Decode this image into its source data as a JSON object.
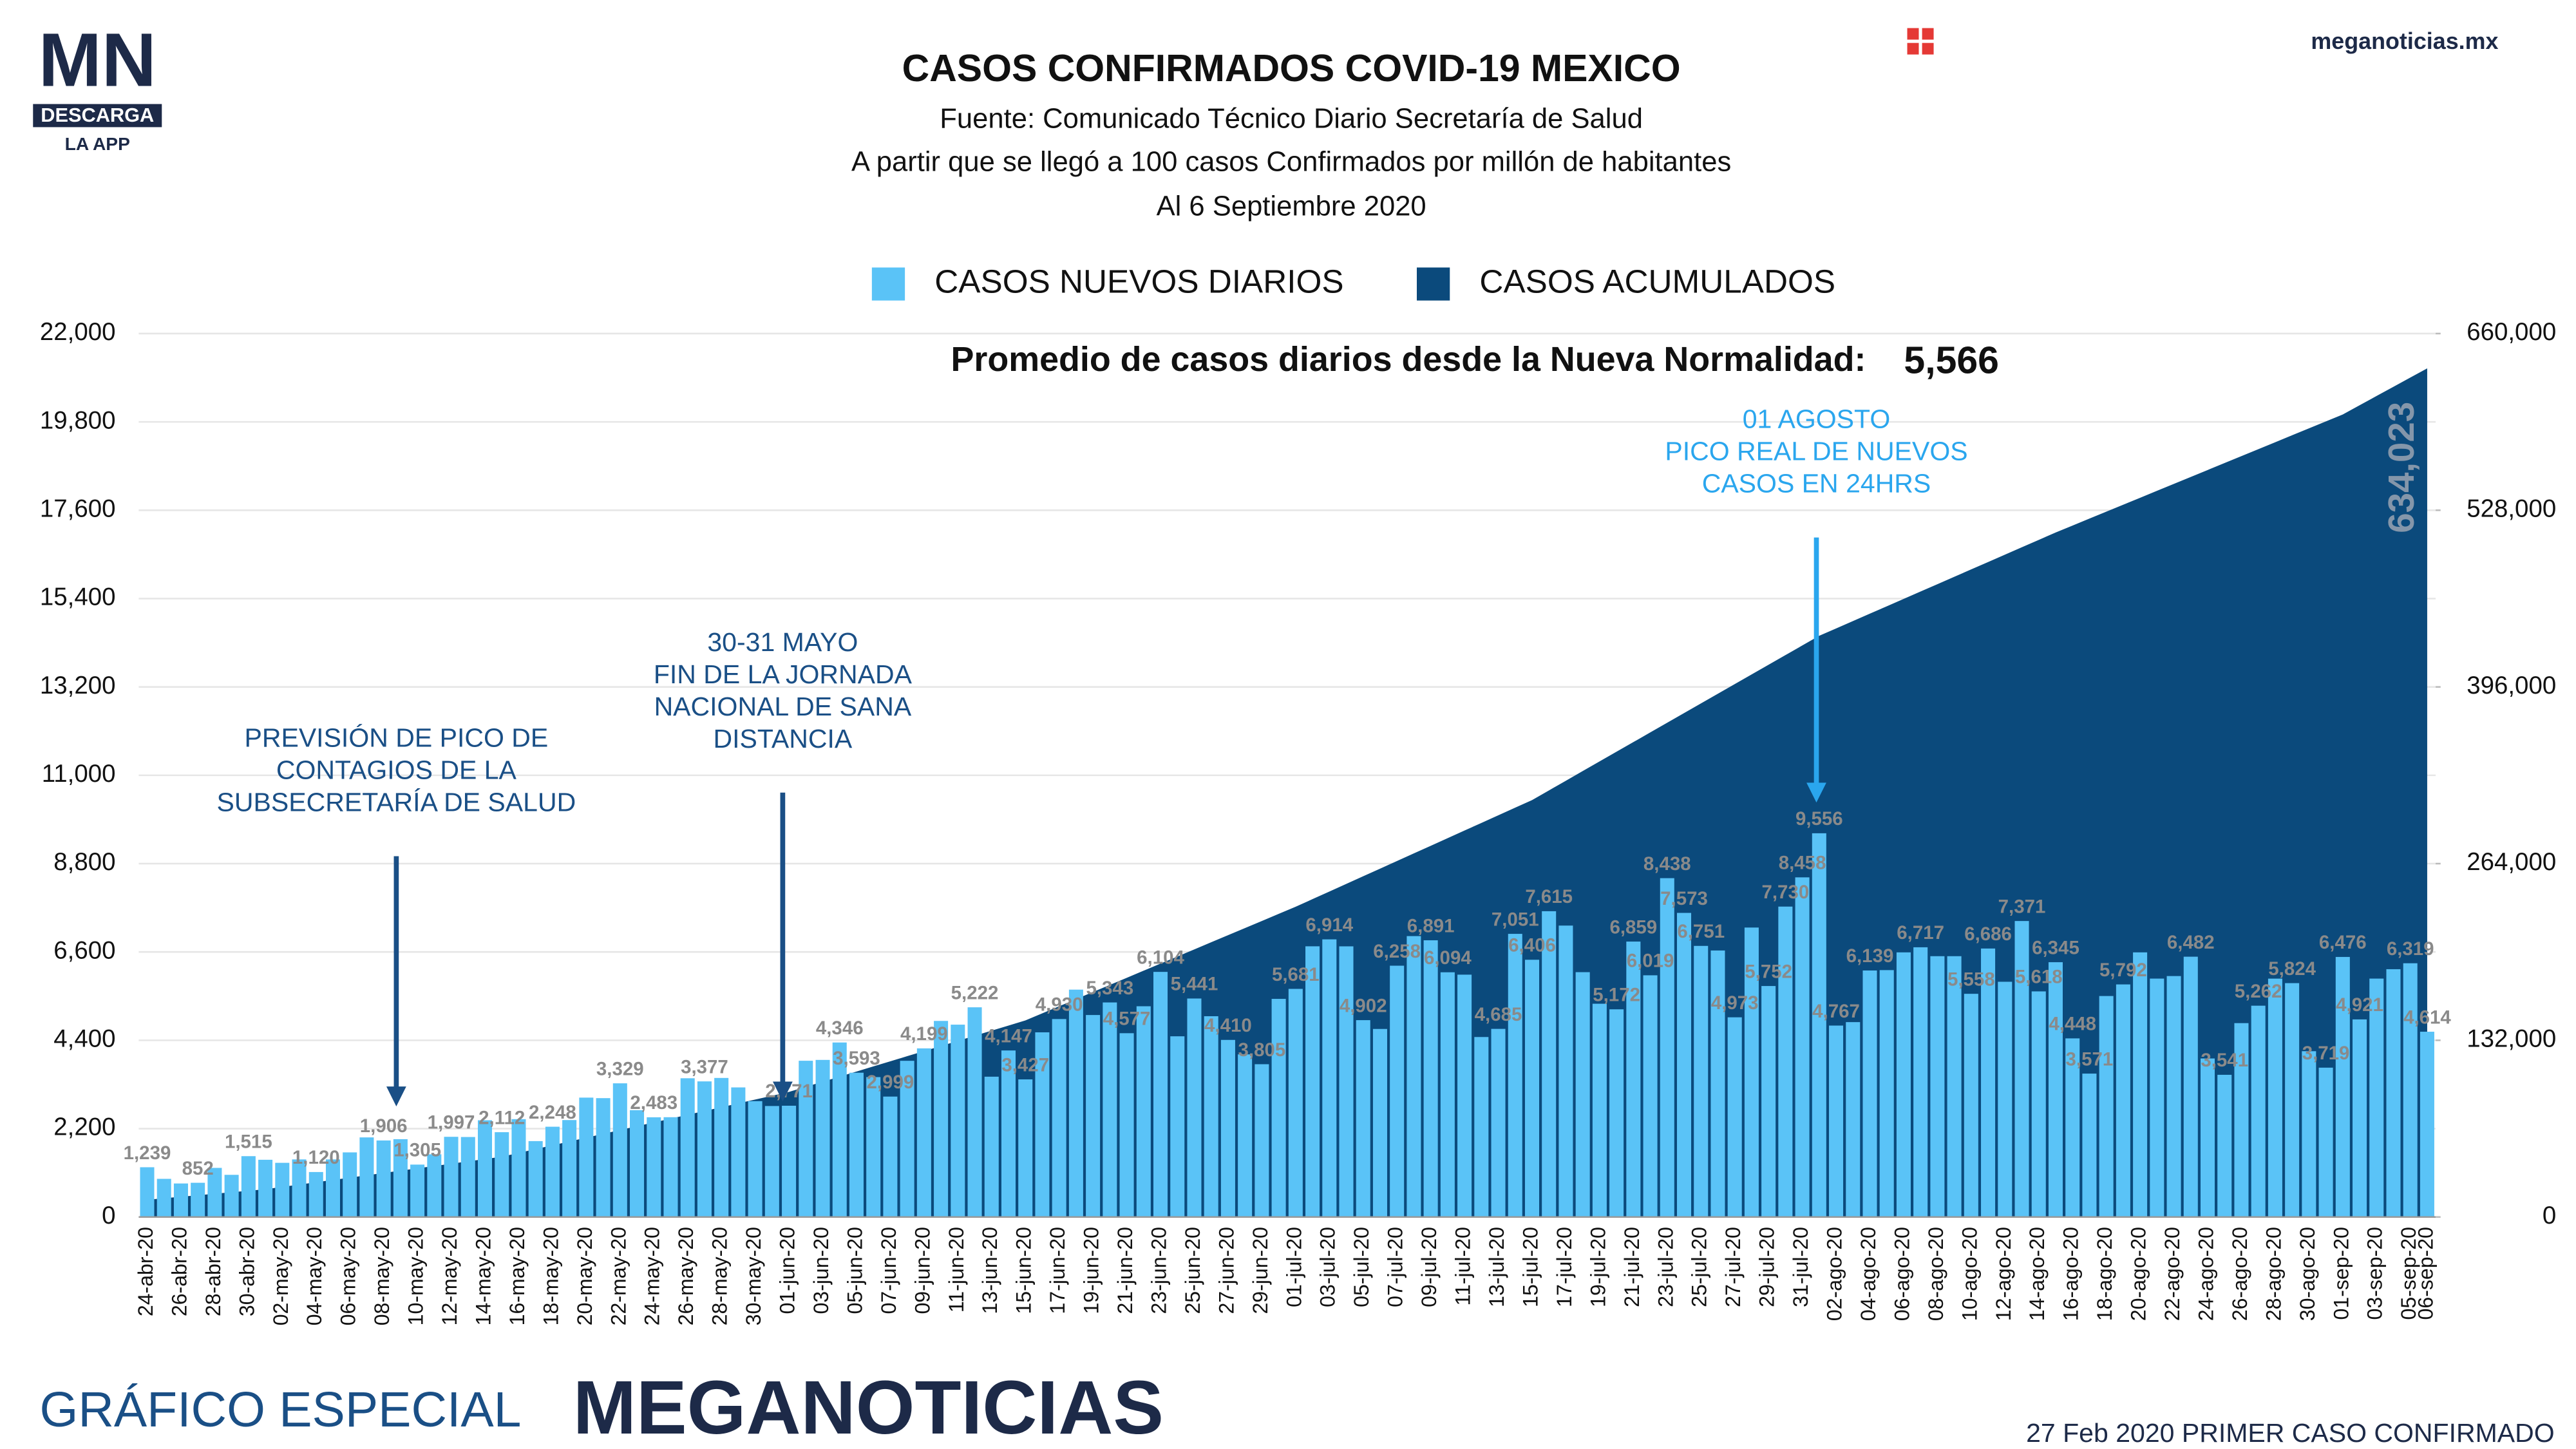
{
  "brand": {
    "logo": "MN",
    "download": "DESCARGA",
    "app": "LA APP",
    "site": "meganoticias.mx"
  },
  "footer": {
    "left": "GRÁFICO ESPECIAL",
    "brand": "MEGANOTICIAS",
    "right": "27 Feb 2020 PRIMER CASO CONFIRMADO"
  },
  "chart_data": {
    "type": "bar",
    "title": "CASOS CONFIRMADOS COVID-19 MEXICO",
    "subtitle": [
      "Fuente: Comunicado Técnico Diario Secretaría de Salud",
      "A partir que se llegó a 100 casos Confirmados por millón de habitantes",
      "Al 6 Septiembre 2020"
    ],
    "average": {
      "label": "Promedio de casos diarios desde la Nueva Normalidad:",
      "value": "5,566"
    },
    "annotations": [
      {
        "lines": [
          "PREVISIÓN DE PICO DE",
          "CONTAGIOS DE LA",
          "SUBSECRETARÍA DE SALUD"
        ],
        "color": "#1a4f86"
      },
      {
        "lines": [
          "30-31 MAYO",
          "FIN DE LA JORNADA",
          "NACIONAL DE SANA",
          "DISTANCIA"
        ],
        "color": "#1a4f86"
      },
      {
        "lines": [
          "01 AGOSTO",
          "PICO REAL DE NUEVOS",
          "CASOS EN 24HRS"
        ],
        "color": "#2aa6ee"
      }
    ],
    "categories": [
      "24-abr-20",
      null,
      "26-abr-20",
      null,
      "28-abr-20",
      null,
      "30-abr-20",
      null,
      "02-may-20",
      null,
      "04-may-20",
      null,
      "06-may-20",
      null,
      "08-may-20",
      null,
      "10-may-20",
      null,
      "12-may-20",
      null,
      "14-may-20",
      null,
      "16-may-20",
      null,
      "18-may-20",
      null,
      "20-may-20",
      null,
      "22-may-20",
      null,
      "24-may-20",
      null,
      "26-may-20",
      null,
      "28-may-20",
      null,
      "30-may-20",
      null,
      "01-jun-20",
      null,
      "03-jun-20",
      null,
      "05-jun-20",
      null,
      "07-jun-20",
      null,
      "09-jun-20",
      null,
      "11-jun-20",
      null,
      "13-jun-20",
      null,
      "15-jun-20",
      null,
      "17-jun-20",
      null,
      "19-jun-20",
      null,
      "21-jun-20",
      null,
      "23-jun-20",
      null,
      "25-jun-20",
      null,
      "27-jun-20",
      null,
      "29-jun-20",
      null,
      "01-jul-20",
      null,
      "03-jul-20",
      null,
      "05-jul-20",
      null,
      "07-jul-20",
      null,
      "09-jul-20",
      null,
      "11-jul-20",
      null,
      "13-jul-20",
      null,
      "15-jul-20",
      null,
      "17-jul-20",
      null,
      "19-jul-20",
      null,
      "21-jul-20",
      null,
      "23-jul-20",
      null,
      "25-jul-20",
      null,
      "27-jul-20",
      null,
      "29-jul-20",
      null,
      "31-jul-20",
      null,
      "02-ago-20",
      null,
      "04-ago-20",
      null,
      "06-ago-20",
      null,
      "08-ago-20",
      null,
      "10-ago-20",
      null,
      "12-ago-20",
      null,
      "14-ago-20",
      null,
      "16-ago-20",
      null,
      "18-ago-20",
      null,
      "20-ago-20",
      null,
      "22-ago-20",
      null,
      "24-ago-20",
      null,
      "26-ago-20",
      null,
      "28-ago-20",
      null,
      "30-ago-20",
      null,
      "01-sep-20",
      null,
      "03-sep-20",
      null,
      "05-sep-20",
      "06-sep-20"
    ],
    "series": [
      {
        "name": "CASOS NUEVOS DIARIOS",
        "type": "bar",
        "color": "#5ac3f7",
        "values": [
          1239,
          950,
          835,
          852,
          1223,
          1050,
          1515,
          1425,
          1349,
          1434,
          1120,
          1434,
          1609,
          1982,
          1906,
          1938,
          1305,
          1562,
          1997,
          1992,
          2409,
          2112,
          2437,
          1890,
          2248,
          2414,
          2973,
          2960,
          3329,
          2660,
          2483,
          2485,
          3455,
          3377,
          3463,
          3227,
          2885,
          2764,
          2771,
          3891,
          3912,
          4346,
          3593,
          3484,
          2999,
          3890,
          4199,
          4883,
          4790,
          5222,
          3494,
          4147,
          3427,
          4599,
          4930,
          5662,
          5030,
          5343,
          4577,
          5248,
          6104,
          4500,
          5441,
          5000,
          4410,
          4050,
          3805,
          5432,
          5681,
          6741,
          6914,
          6740,
          4902,
          4683,
          6258,
          6995,
          6891,
          6094,
          6035,
          4482,
          4685,
          7051,
          6406,
          7615,
          7257,
          6097,
          5311,
          5172,
          6859,
          6019,
          8438,
          7573,
          6751,
          6637,
          4973,
          7208,
          5752,
          7730,
          8458,
          9556,
          4767,
          4853,
          6139,
          6148,
          6590,
          6717,
          6495,
          6495,
          5558,
          6686,
          5858,
          7371,
          5618,
          6345,
          4448,
          3571,
          5503,
          5792,
          6590,
          5937,
          6000,
          6482,
          3948,
          3541,
          4828,
          5262,
          5936,
          5824,
          4129,
          3719,
          6476,
          4921,
          5937,
          6171,
          6319,
          4614
        ],
        "value_labels": [
          "1,239",
          null,
          null,
          "852",
          null,
          null,
          "1,515",
          null,
          null,
          null,
          "1,120",
          null,
          null,
          null,
          "1,906",
          null,
          "1,305",
          null,
          "1,997",
          null,
          null,
          "2,112",
          null,
          null,
          "2,248",
          null,
          null,
          null,
          "3,329",
          null,
          "2,483",
          null,
          null,
          "3,377",
          null,
          null,
          null,
          null,
          "2,771",
          null,
          null,
          "4,346",
          "3,593",
          null,
          "2,999",
          null,
          "4,199",
          null,
          null,
          "5,222",
          null,
          "4,147",
          "3,427",
          null,
          "4,930",
          null,
          null,
          "5,343",
          "4,577",
          null,
          "6,104",
          null,
          "5,441",
          null,
          "4,410",
          null,
          "3,805",
          null,
          "5,681",
          null,
          "6,914",
          null,
          "4,902",
          null,
          "6,258",
          null,
          "6,891",
          "6,094",
          null,
          null,
          "4,685",
          "7,051",
          "6,406",
          "7,615",
          null,
          null,
          null,
          "5,172",
          "6,859",
          "6,019",
          "8,438",
          "7,573",
          "6,751",
          null,
          "4,973",
          null,
          "5,752",
          "7,730",
          "8,458",
          "9,556",
          "4,767",
          null,
          "6,139",
          null,
          null,
          "6,717",
          null,
          null,
          "5,558",
          "6,686",
          null,
          "7,371",
          "5,618",
          "6,345",
          "4,448",
          "3,571",
          null,
          "5,792",
          null,
          null,
          null,
          "6,482",
          null,
          "3,541",
          null,
          "5,262",
          null,
          "5,824",
          null,
          "3,719",
          "6,476",
          "4,921",
          null,
          null,
          "6,319",
          "4,614"
        ]
      },
      {
        "name": "CASOS ACUMULADOS",
        "type": "area",
        "axis": "y2",
        "color": "#0b4a7c",
        "values": [
          12872,
          13996,
          15120,
          16244,
          17368,
          18492,
          19616,
          20739,
          22474,
          24209,
          25944,
          27679,
          29414,
          31149,
          32884,
          34619,
          36354,
          38089,
          39824,
          41559,
          43294,
          45032,
          47879,
          50726,
          53573,
          56420,
          59267,
          62114,
          64961,
          67808,
          70655,
          73502,
          76349,
          79196,
          82043,
          84890,
          87737,
          90584,
          93435,
          97249,
          101063,
          104877,
          108691,
          112505,
          116319,
          120133,
          123947,
          127761,
          131575,
          135389,
          139203,
          143017,
          146837,
          152145,
          157453,
          162761,
          168069,
          173377,
          178685,
          183993,
          189301,
          194609,
          199917,
          205225,
          210533,
          215841,
          221149,
          226457,
          231770,
          237464,
          243158,
          248852,
          254546,
          260240,
          265934,
          271628,
          277322,
          283016,
          288710,
          294404,
          300098,
          305792,
          311486,
          318704,
          325922,
          333140,
          340358,
          347576,
          354794,
          362012,
          369230,
          376448,
          383666,
          390884,
          398102,
          405320,
          412538,
          419756,
          426974,
          434193,
          439706,
          445219,
          450732,
          456245,
          461758,
          467271,
          472784,
          478297,
          483810,
          489323,
          494836,
          500349,
          505862,
          511369,
          516557,
          521745,
          526933,
          532121,
          537309,
          542497,
          547685,
          552873,
          558061,
          563249,
          568437,
          573625,
          578813,
          584001,
          589189,
          594377,
          599560,
          606453,
          613346,
          620239,
          627132,
          634023
        ],
        "value_labels": [
          null,
          null,
          null,
          null,
          null,
          null,
          null,
          null,
          null,
          null,
          null,
          null,
          null,
          null,
          null,
          null,
          null,
          null,
          null,
          null,
          null,
          null,
          null,
          null,
          null,
          null,
          null,
          null,
          null,
          null,
          null,
          null,
          null,
          null,
          null,
          null,
          null,
          null,
          null,
          null,
          null,
          null,
          null,
          null,
          null,
          null,
          null,
          null,
          null,
          null,
          null,
          null,
          null,
          null,
          null,
          null,
          null,
          null,
          null,
          null,
          null,
          null,
          null,
          null,
          null,
          null,
          null,
          null,
          null,
          null,
          null,
          null,
          null,
          null,
          null,
          null,
          null,
          null,
          null,
          null,
          null,
          null,
          null,
          null,
          null,
          null,
          null,
          null,
          null,
          null,
          null,
          null,
          null,
          null,
          null,
          null,
          null,
          null,
          null,
          null,
          null,
          null,
          null,
          null,
          null,
          null,
          null,
          null,
          null,
          null,
          null,
          null,
          null,
          null,
          null,
          null,
          null,
          null,
          null,
          null,
          null,
          null,
          null,
          null,
          null,
          null,
          null,
          null,
          null,
          null,
          null,
          null,
          null,
          null,
          null,
          "634,023"
        ]
      }
    ],
    "ylim": [
      0,
      22000
    ],
    "yticks": [
      0,
      {
        "value": 2200,
        "label": "2,200"
      },
      {
        "value": 4400,
        "label": "4,400"
      },
      {
        "value": 6600,
        "label": "6,600"
      },
      {
        "value": 8800,
        "label": "8,800"
      },
      {
        "value": 11000,
        "label": "11,000"
      },
      {
        "value": 13200,
        "label": "13,200"
      },
      {
        "value": 15400,
        "label": "15,400"
      },
      {
        "value": 17600,
        "label": "17,600"
      },
      {
        "value": 19800,
        "label": "19,800"
      },
      {
        "value": 22000,
        "label": "22,000"
      }
    ],
    "y2lim": [
      0,
      660000
    ],
    "y2ticks": [
      0,
      {
        "value": 132000,
        "label": "132,000"
      },
      {
        "value": 264000,
        "label": "264,000"
      },
      {
        "value": 396000,
        "label": "396,000"
      },
      {
        "value": 528000,
        "label": "528,000"
      },
      {
        "value": 660000,
        "label": "660,000"
      }
    ],
    "grid": true
  }
}
